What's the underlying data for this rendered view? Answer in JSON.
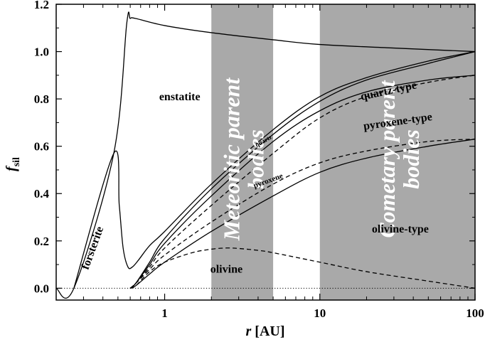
{
  "chart_data": {
    "type": "line",
    "xlabel_symbol": "r",
    "xlabel_unit": "[AU]",
    "ylabel_symbol": "f",
    "ylabel_sub": "sil",
    "xscale": "log",
    "xlim": [
      0.2,
      100
    ],
    "ylim": [
      -0.05,
      1.2
    ],
    "x_ticks": [
      1,
      10,
      100
    ],
    "x_tick_labels": [
      "1",
      "10",
      "100"
    ],
    "y_ticks": [
      0.0,
      0.2,
      0.4,
      0.6,
      0.8,
      1.0,
      1.2
    ],
    "y_tick_labels": [
      "0.0",
      "0.2",
      "0.4",
      "0.6",
      "0.8",
      "1.0",
      "1.2"
    ],
    "bands": [
      {
        "x0": 2,
        "x1": 5,
        "label_line1": "Meteoritic parent",
        "label_line2": "bodies",
        "color": "#a9a9a9"
      },
      {
        "x0": 10,
        "x1": 100,
        "label_line1": "Cometary parent",
        "label_line2": "bodies",
        "color": "#a9a9a9"
      }
    ],
    "annotations": [
      {
        "text": "enstatite",
        "x": 1.25,
        "y": 0.795,
        "size": 16,
        "rotate": 0
      },
      {
        "text": "forsterite",
        "x": 0.36,
        "y": 0.165,
        "size": 16,
        "rotate": -70
      },
      {
        "text": "olivine",
        "x": 2.5,
        "y": 0.065,
        "size": 16,
        "rotate": 0
      },
      {
        "text": "quartz-type",
        "x": 28,
        "y": 0.82,
        "size": 16,
        "rotate": -12
      },
      {
        "text": "pyroxene-type",
        "x": 32,
        "y": 0.69,
        "size": 16,
        "rotate": -8
      },
      {
        "text": "olivine-type",
        "x": 33,
        "y": 0.235,
        "size": 16,
        "rotate": 0
      },
      {
        "text": "quartz",
        "x": 4.4,
        "y": 0.615,
        "size": 9,
        "rotate": -30
      },
      {
        "text": "pyroxene",
        "x": 4.7,
        "y": 0.445,
        "size": 11,
        "rotate": -20
      }
    ],
    "series": [
      {
        "style": "solid",
        "x": [
          0.2,
          0.26,
          0.47,
          0.57,
          0.6,
          0.65,
          1,
          2,
          5,
          10,
          30,
          100
        ],
        "y": [
          0,
          0,
          0.57,
          1.12,
          1.14,
          1.14,
          1.11,
          1.08,
          1.05,
          1.03,
          1.015,
          1.0
        ]
      },
      {
        "style": "solid",
        "x": [
          0.26,
          0.47,
          0.51,
          0.54,
          0.58,
          0.62,
          0.68,
          0.8,
          1,
          2,
          5,
          10,
          20,
          50,
          100
        ],
        "y": [
          0,
          0.57,
          0.35,
          0.17,
          0.09,
          0.09,
          0.12,
          0.18,
          0.24,
          0.44,
          0.67,
          0.81,
          0.89,
          0.96,
          1.0
        ]
      },
      {
        "style": "solid",
        "x": [
          0.6,
          0.65,
          0.8,
          1,
          2,
          5,
          10,
          20,
          50,
          100
        ],
        "y": [
          0,
          0.02,
          0.11,
          0.21,
          0.42,
          0.65,
          0.79,
          0.88,
          0.95,
          1.0
        ]
      },
      {
        "style": "solid",
        "x": [
          0.6,
          0.65,
          0.8,
          1,
          2,
          5,
          10,
          20,
          50,
          100
        ],
        "y": [
          0,
          0.02,
          0.1,
          0.19,
          0.39,
          0.62,
          0.75,
          0.83,
          0.88,
          0.9
        ]
      },
      {
        "style": "dashed",
        "x": [
          0.6,
          0.65,
          0.8,
          1,
          2,
          5,
          10,
          20,
          50,
          100
        ],
        "y": [
          0,
          0.02,
          0.09,
          0.17,
          0.35,
          0.57,
          0.72,
          0.81,
          0.87,
          0.9
        ]
      },
      {
        "style": "dashed",
        "x": [
          0.6,
          0.65,
          0.8,
          1,
          2,
          5,
          10,
          20,
          50,
          100
        ],
        "y": [
          0,
          0.02,
          0.08,
          0.14,
          0.28,
          0.44,
          0.53,
          0.58,
          0.62,
          0.63
        ]
      },
      {
        "style": "solid",
        "x": [
          0.6,
          0.65,
          0.8,
          1,
          2,
          5,
          10,
          20,
          50,
          100
        ],
        "y": [
          0,
          0.01,
          0.06,
          0.11,
          0.24,
          0.39,
          0.49,
          0.55,
          0.6,
          0.63
        ]
      },
      {
        "style": "dashed",
        "x": [
          0.6,
          0.65,
          0.8,
          1,
          1.5,
          2,
          2.5,
          3,
          4,
          5,
          10,
          20,
          50,
          100
        ],
        "y": [
          0,
          0.01,
          0.07,
          0.11,
          0.15,
          0.165,
          0.17,
          0.168,
          0.16,
          0.15,
          0.11,
          0.07,
          0.03,
          0.0
        ]
      },
      {
        "style": "dotted",
        "x": [
          0.2,
          100
        ],
        "y": [
          0,
          0
        ]
      }
    ]
  }
}
